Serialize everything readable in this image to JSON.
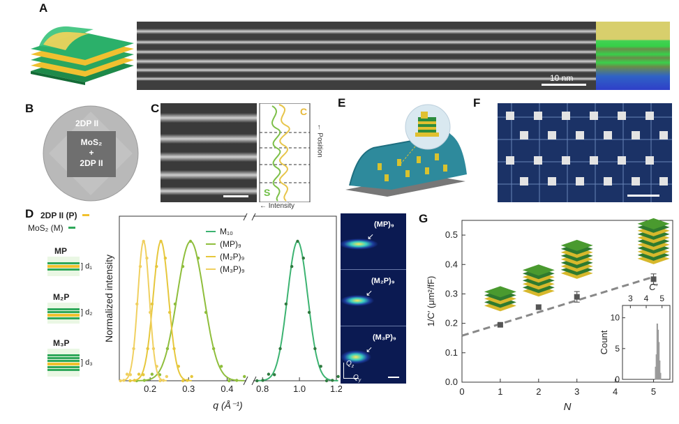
{
  "panels": {
    "A": "A",
    "B": "B",
    "C": "C",
    "D": "D",
    "E": "E",
    "F": "F",
    "G": "G"
  },
  "panel_a": {
    "scale_bar": "10 nm"
  },
  "panel_b": {
    "outer_label": "2DP II",
    "inner_line1": "MoS₂",
    "inner_line2": "+",
    "inner_line3": "2DP II"
  },
  "panel_c": {
    "label_top": "C",
    "label_bottom": "S",
    "axis_position": "Position",
    "axis_intensity": "Intensity"
  },
  "panel_d_legend": {
    "p_label": "2DP II (P)",
    "m_label": "MoS₂ (M)",
    "structures": [
      {
        "name": "MP",
        "d": "d₁"
      },
      {
        "name": "M₂P",
        "d": "d₂"
      },
      {
        "name": "M₃P",
        "d": "d₃"
      }
    ]
  },
  "panel_d_insets": [
    "(MP)₉",
    "(M₂P)₉",
    "(M₃P)₉"
  ],
  "panel_d_inset_axes": {
    "qz": "Q",
    "qy": "Q"
  },
  "colors": {
    "m10": "#3cb371",
    "mp": "#8fbe3c",
    "m2p": "#e6c73c",
    "m3p": "#f0d060",
    "p_swatch": "#f2c12e",
    "m_swatch": "#2fa85a",
    "g_points": "#555555",
    "g_fit": "#888888",
    "board": "#1b3266"
  },
  "chart_data": [
    {
      "type": "line",
      "ylabel": "Normalized intensity",
      "xlabel": "q (Å⁻¹)",
      "xticks": [
        "0.2",
        "0.3",
        "0.4",
        "0.8",
        "1.0",
        "1.2"
      ],
      "series": [
        {
          "name": "M₁₀",
          "center": 0.99,
          "width": 0.055,
          "color_key": "m10"
        },
        {
          "name": "(MP)₉",
          "center": 0.305,
          "width": 0.035,
          "color_key": "mp"
        },
        {
          "name": "(M₂P)₉",
          "center": 0.228,
          "width": 0.02,
          "color_key": "m2p"
        },
        {
          "name": "(M₃P)₉",
          "center": 0.183,
          "width": 0.015,
          "color_key": "m3p"
        }
      ]
    },
    {
      "type": "scatter",
      "xlabel": "N",
      "ylabel": "1/C′ (μm²/fF)",
      "xlim": [
        0,
        5.5
      ],
      "ylim": [
        0,
        0.55
      ],
      "xticks": [
        "0",
        "1",
        "2",
        "3",
        "4",
        "5"
      ],
      "yticks": [
        "0.0",
        "0.1",
        "0.2",
        "0.3",
        "0.4",
        "0.5"
      ],
      "x": [
        1,
        2,
        3,
        5
      ],
      "y": [
        0.195,
        0.255,
        0.29,
        0.35
      ],
      "yerr": [
        0.006,
        0.008,
        0.018,
        0.018
      ],
      "fit": {
        "intercept": 0.158,
        "slope": 0.04
      },
      "inset": {
        "xlabel": "C′",
        "ylabel": "Count",
        "xticks": [
          "3",
          "4",
          "5"
        ],
        "yticks": [
          "0",
          "5",
          "10"
        ],
        "bins": [
          {
            "x": 4.6,
            "count": 2
          },
          {
            "x": 4.65,
            "count": 4
          },
          {
            "x": 4.7,
            "count": 9
          },
          {
            "x": 4.75,
            "count": 8
          },
          {
            "x": 4.8,
            "count": 6
          },
          {
            "x": 4.85,
            "count": 3
          },
          {
            "x": 4.9,
            "count": 1
          }
        ]
      }
    }
  ]
}
